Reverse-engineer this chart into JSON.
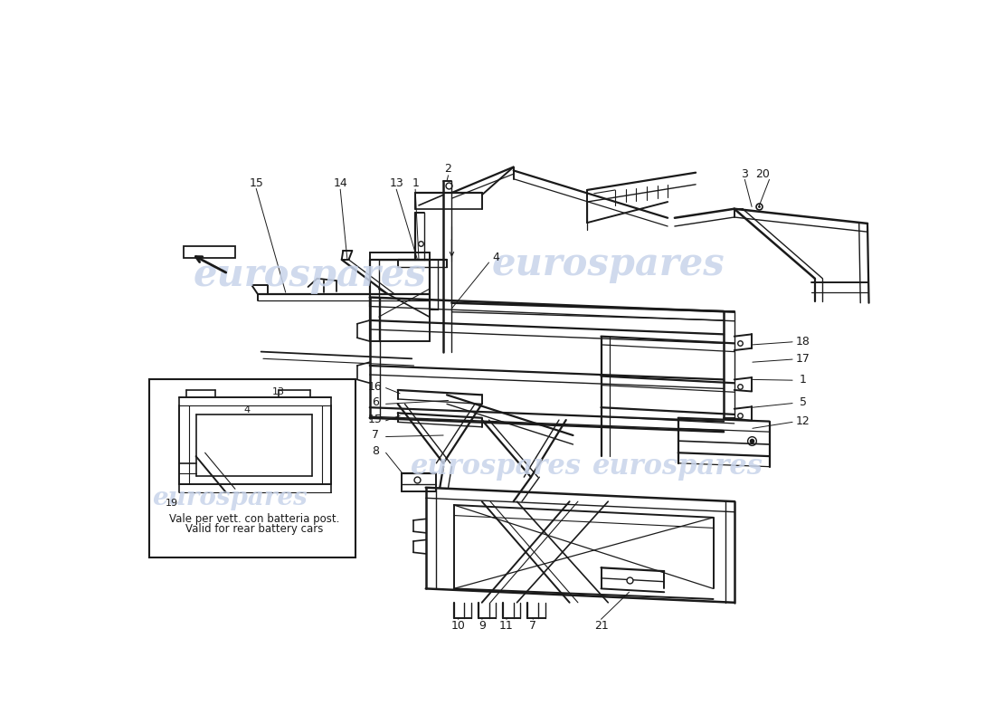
{
  "background_color": "#ffffff",
  "line_color": "#1a1a1a",
  "watermark_color": "#c8d4ea",
  "inset_text_line1": "Vale per vett. con batteria post.",
  "inset_text_line2": "Valid for rear battery cars",
  "watermark_text": "eurospares"
}
